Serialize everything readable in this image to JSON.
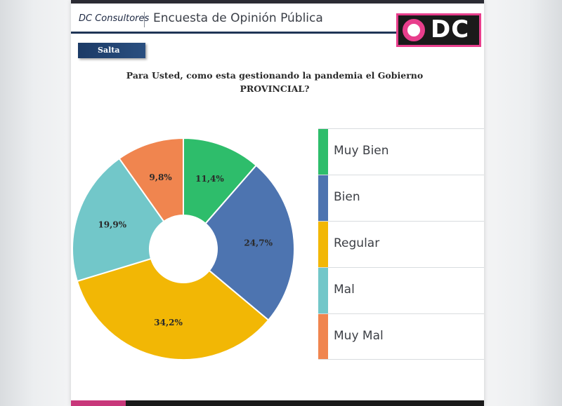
{
  "header": {
    "brand": "DC Consultores",
    "title": "Encuesta de Opinión Pública",
    "logo_text": "DC"
  },
  "region": "Salta",
  "question": "Para Usted, como esta gestionando la pandemia el Gobierno PROVINCIAL?",
  "colors": {
    "accent_pink": "#e83e8c",
    "header_navy": "#1f3556"
  },
  "chart_data": {
    "type": "pie",
    "donut": true,
    "title": "Para Usted, como esta gestionando la pandemia el Gobierno PROVINCIAL?",
    "legend_position": "right",
    "categories": [
      "Muy Bien",
      "Bien",
      "Regular",
      "Mal",
      "Muy Mal"
    ],
    "values": [
      11.4,
      24.7,
      34.2,
      19.9,
      9.8
    ],
    "labels": [
      "11,4%",
      "24,7%",
      "34,2%",
      "19,9%",
      "9,8%"
    ],
    "colors": [
      "#2ebd6b",
      "#4d74b0",
      "#f2b705",
      "#72c7c9",
      "#f0854f"
    ]
  },
  "legend": [
    {
      "label": "Muy Bien",
      "color": "#2ebd6b"
    },
    {
      "label": "Bien",
      "color": "#4d74b0"
    },
    {
      "label": "Regular",
      "color": "#f2b705"
    },
    {
      "label": "Mal",
      "color": "#72c7c9"
    },
    {
      "label": "Muy Mal",
      "color": "#f0854f"
    }
  ]
}
